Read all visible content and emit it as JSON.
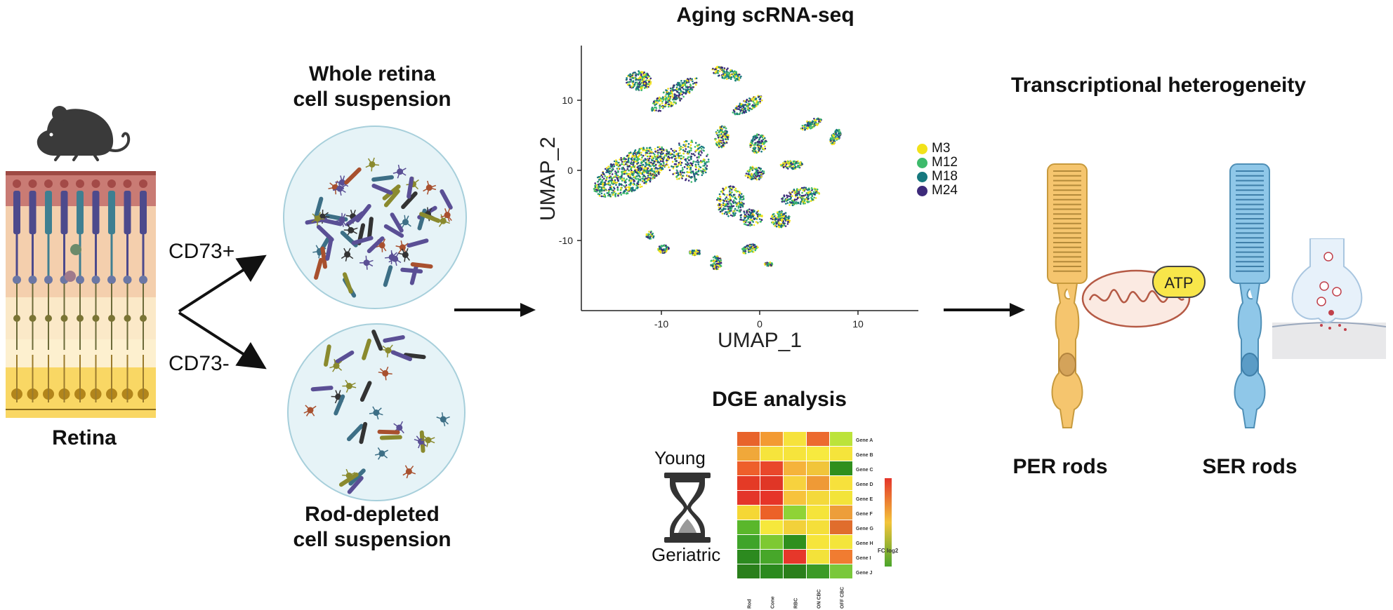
{
  "retina": {
    "label": "Retina"
  },
  "markers": {
    "pos": "CD73+",
    "neg": "CD73-"
  },
  "suspensions": {
    "whole_line1": "Whole retina",
    "whole_line2": "cell suspension",
    "depleted_line1": "Rod-depleted",
    "depleted_line2": "cell suspension"
  },
  "umap": {
    "title": "Aging scRNA-seq",
    "xlabel": "UMAP_1",
    "ylabel": "UMAP_2",
    "xticks": [
      "-10",
      "0",
      "10"
    ],
    "yticks": [
      "10",
      "0",
      "-10"
    ],
    "legend": [
      {
        "label": "M3",
        "color": "#f2e21a"
      },
      {
        "label": "M12",
        "color": "#3dba6b"
      },
      {
        "label": "M18",
        "color": "#16787e"
      },
      {
        "label": "M24",
        "color": "#3d2a7a"
      }
    ]
  },
  "dge": {
    "title": "DGE analysis",
    "young": "Young",
    "geriatric": "Geriatric",
    "legend_label": "FC log2",
    "rows": [
      "Gene A",
      "Gene B",
      "Gene C",
      "Gene D",
      "Gene E",
      "Gene F",
      "Gene G",
      "Gene H",
      "Gene I",
      "Gene J"
    ],
    "cols": [
      "Rod",
      "Cone",
      "RBC",
      "ON CBC",
      "OFF CBC"
    ],
    "colors": [
      [
        "#e8632b",
        "#f39a32",
        "#f6e23c",
        "#ec6a2f",
        "#bce33a"
      ],
      [
        "#f0a83a",
        "#f6e43c",
        "#f6e43c",
        "#f7ea3f",
        "#f5e43b"
      ],
      [
        "#ee5f2b",
        "#e9472b",
        "#f5b33b",
        "#f1c53a",
        "#2f8f1d"
      ],
      [
        "#e43a26",
        "#e03626",
        "#f7d23e",
        "#ef9a36",
        "#f7e13c"
      ],
      [
        "#e4352a",
        "#e63428",
        "#f7c33c",
        "#f4d93b",
        "#f3e43a"
      ],
      [
        "#f5d735",
        "#ec6128",
        "#8fd336",
        "#f5e43a",
        "#ed9e3a"
      ],
      [
        "#5ab72b",
        "#f6e83c",
        "#f2d13a",
        "#f5df3a",
        "#e06d2d"
      ],
      [
        "#3fa42a",
        "#7ec932",
        "#2f8f1d",
        "#f6e53b",
        "#f4e53b"
      ],
      [
        "#2c8a1f",
        "#47a72a",
        "#e6372a",
        "#f3e23a",
        "#f07c31"
      ],
      [
        "#2a7f1b",
        "#2b8a1e",
        "#2a7f1b",
        "#3b9a26",
        "#7ac83a"
      ]
    ]
  },
  "heterogeneity": {
    "title": "Transcriptional heterogeneity",
    "per_label": "PER rods",
    "ser_label": "SER rods",
    "atp": "ATP"
  }
}
